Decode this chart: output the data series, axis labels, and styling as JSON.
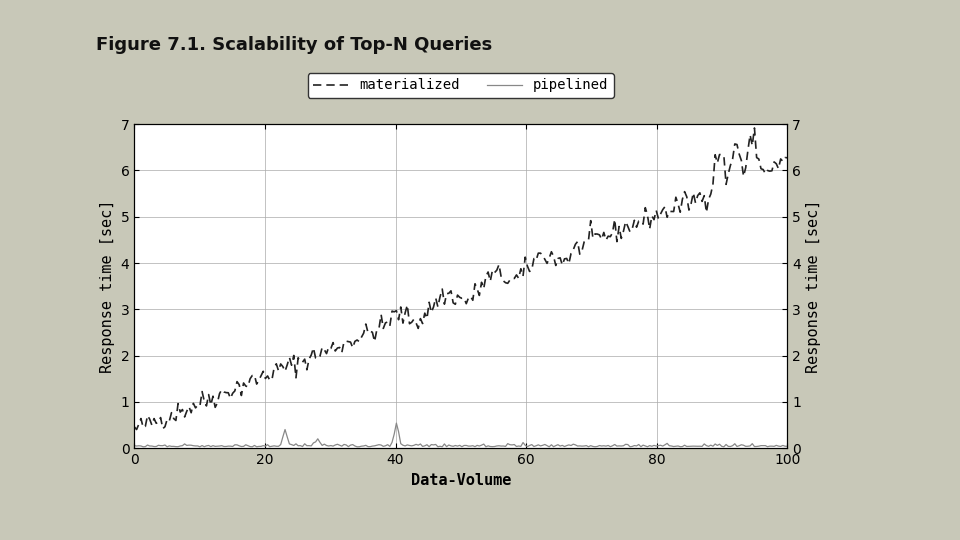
{
  "title": "Figure 7.1. Scalability of Top-N Queries",
  "xlabel": "Data-Volume",
  "ylabel_left": "Response time [sec]",
  "ylabel_right": "Response time [sec]",
  "xlim": [
    0,
    100
  ],
  "ylim": [
    0,
    7
  ],
  "xticks": [
    0,
    20,
    40,
    60,
    80,
    100
  ],
  "yticks": [
    0,
    1,
    2,
    3,
    4,
    5,
    6,
    7
  ],
  "background_color": "#c8c8b8",
  "panel_color": "#ffffff",
  "materialized_color": "#222222",
  "pipelined_color": "#888888",
  "legend_labels": [
    "materialized",
    "pipelined"
  ],
  "title_fontsize": 13,
  "axis_fontsize": 11,
  "tick_fontsize": 10
}
